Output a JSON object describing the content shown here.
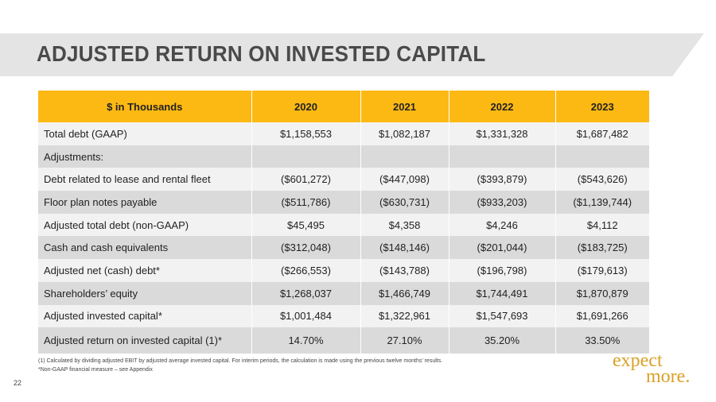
{
  "title": "ADJUSTED RETURN ON INVESTED CAPITAL",
  "table": {
    "headers": [
      "$ in Thousands",
      "2020",
      "2021",
      "2022",
      "2023"
    ],
    "rows": [
      {
        "label": "Total debt (GAAP)",
        "values": [
          "$1,158,553",
          "$1,082,187",
          "$1,331,328",
          "$1,687,482"
        ]
      },
      {
        "label": "Adjustments:",
        "values": [
          "",
          "",
          "",
          ""
        ]
      },
      {
        "label": "Debt related to lease and rental fleet",
        "values": [
          "($601,272)",
          "($447,098)",
          "($393,879)",
          "($543,626)"
        ]
      },
      {
        "label": "Floor plan notes payable",
        "values": [
          "($511,786)",
          "($630,731)",
          "($933,203)",
          "($1,139,744)"
        ]
      },
      {
        "label": "Adjusted total debt (non-GAAP)",
        "values": [
          "$45,495",
          "$4,358",
          "$4,246",
          "$4,112"
        ]
      },
      {
        "label": "Cash and cash equivalents",
        "values": [
          "($312,048)",
          "($148,146)",
          "($201,044)",
          "($183,725)"
        ]
      },
      {
        "label": "Adjusted net (cash) debt*",
        "values": [
          "($266,553)",
          "($143,788)",
          "($196,798)",
          "($179,613)"
        ]
      },
      {
        "label": "Shareholders’ equity",
        "values": [
          "$1,268,037",
          "$1,466,749",
          "$1,744,491",
          "$1,870,879"
        ]
      },
      {
        "label": "Adjusted invested capital*",
        "values": [
          "$1,001,484",
          "$1,322,961",
          "$1,547,693",
          "$1,691,266"
        ]
      },
      {
        "label": "Adjusted return on invested capital (1)*",
        "values": [
          "14.70%",
          "27.10%",
          "35.20%",
          "33.50%"
        ]
      }
    ]
  },
  "footnotes": {
    "note1": "(1)   Calculated  by  dividing  adjusted  EBIT by adjusted  average invested capital.   For interim  periods,  the calculation  is made using  the previous twelve months’  results.",
    "note2": "*Non-GAAP financial  measure  – see Appendix"
  },
  "page_number": "22",
  "logo": {
    "line1": "expect",
    "line2": "more."
  },
  "colors": {
    "header_fill": "#fdb913",
    "row_light": "#f2f2f2",
    "row_dark": "#dadada",
    "title_band": "#e4e4e4",
    "logo": "#d9a127"
  }
}
